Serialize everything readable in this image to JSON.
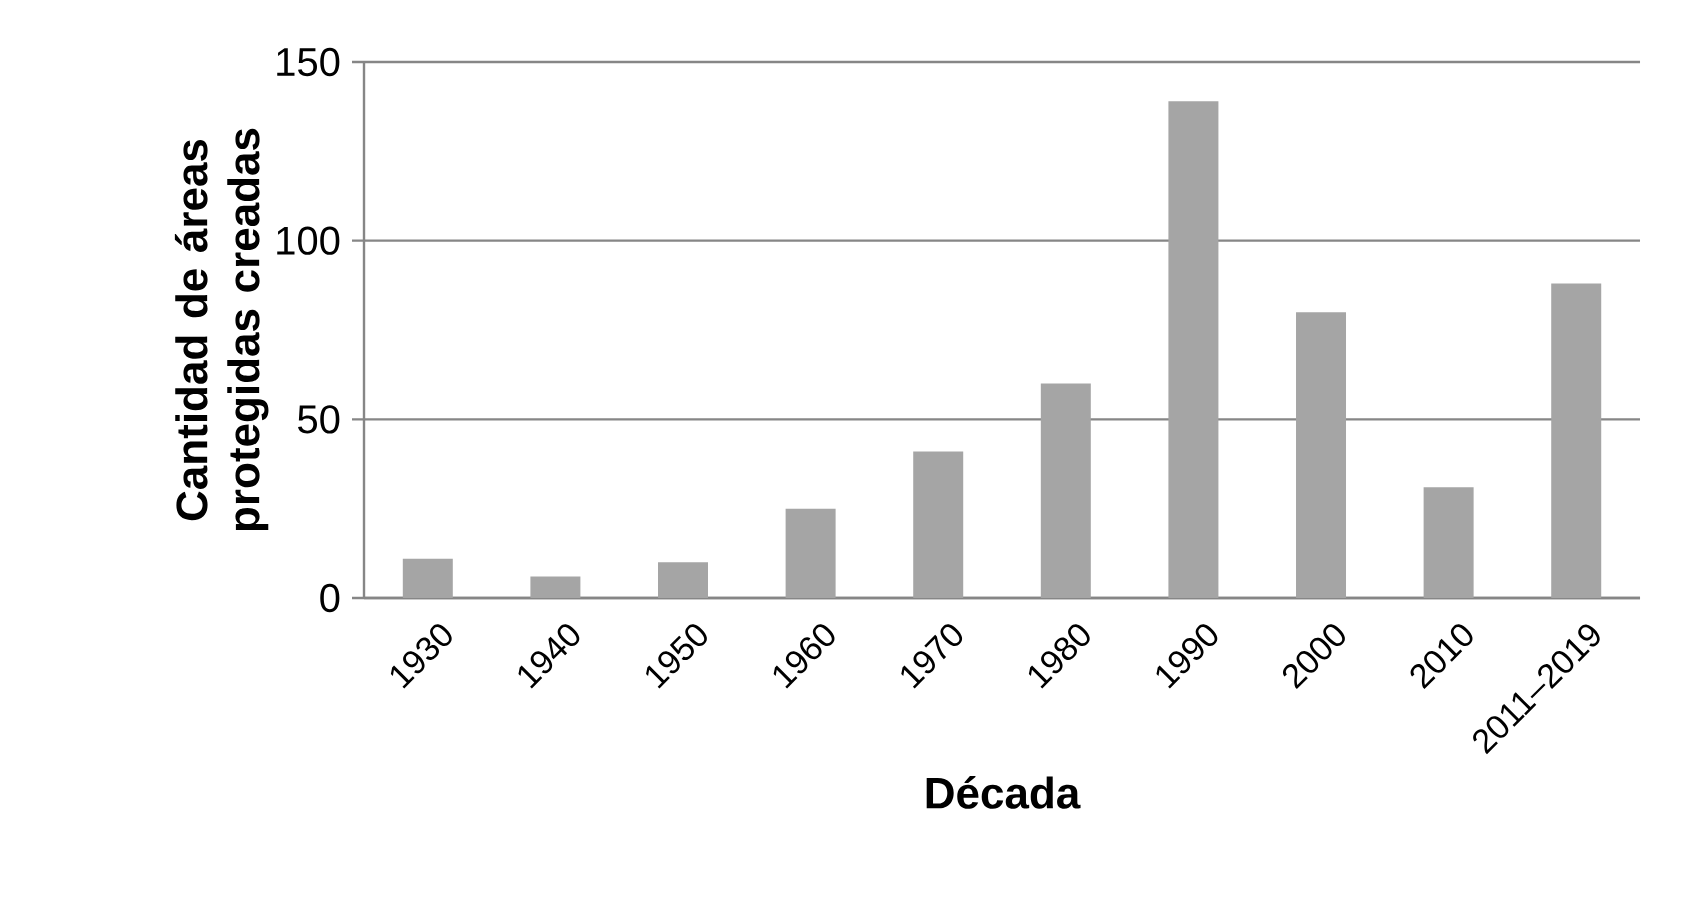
{
  "chart_data": {
    "type": "bar",
    "xlabel": "Década",
    "ylabel": "Cantidad de áreas protegidas creadas",
    "categories": [
      "1930",
      "1940",
      "1950",
      "1960",
      "1970",
      "1980",
      "1990",
      "2000",
      "2010",
      "2011–2019"
    ],
    "values": [
      11,
      6,
      10,
      25,
      41,
      60,
      139,
      80,
      31,
      88
    ],
    "color": "#a5a5a5",
    "ylim": [
      0,
      150
    ],
    "yticks": [
      0,
      50,
      100,
      150
    ],
    "grid": "y"
  }
}
